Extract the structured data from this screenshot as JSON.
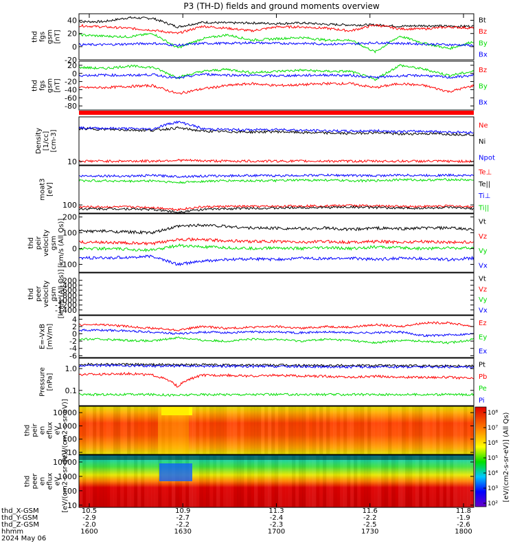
{
  "title": "P3 (TH-D) fields and ground moments overview",
  "colors": {
    "black": "#000000",
    "red": "#ff0000",
    "green": "#00dd00",
    "blue": "#0000ff"
  },
  "chart_data": {
    "type": "line",
    "x_ticks": [
      "1600",
      "1630",
      "1700",
      "1730",
      "1800"
    ],
    "x_axis_rows": [
      {
        "label": "thd_X-GSM",
        "values": [
          "10.5",
          "10.9",
          "11.3",
          "11.6",
          "11.8"
        ]
      },
      {
        "label": "thd_Y-GSM",
        "values": [
          "-2.9",
          "-2.7",
          "-2.4",
          "-2.2",
          "-1.9"
        ]
      },
      {
        "label": "thd_Z-GSM",
        "values": [
          "-2.0",
          "-2.2",
          "-2.3",
          "-2.5",
          "-2.6"
        ]
      },
      {
        "label": "hhmm",
        "values": [
          "1600",
          "1630",
          "1700",
          "1730",
          "1800"
        ]
      }
    ],
    "date_label": "2024 May 06",
    "panels": [
      {
        "ylabel": [
          "thd",
          "fgs",
          "gsm",
          "[nT]"
        ],
        "ylim": [
          -20,
          50
        ],
        "yticks": [
          "40",
          "20",
          "0",
          "-20"
        ],
        "legend": [
          {
            "name": "Bt",
            "color": "black"
          },
          {
            "name": "Bz",
            "color": "red"
          },
          {
            "name": "By",
            "color": "green"
          },
          {
            "name": "Bx",
            "color": "blue"
          }
        ],
        "series": [
          {
            "name": "Bt",
            "color": "black",
            "values": [
              38,
              38,
              44,
              43,
              30,
              37,
              36,
              36,
              35,
              36,
              34,
              33,
              33,
              31,
              32,
              31,
              31
            ]
          },
          {
            "name": "Bz",
            "color": "red",
            "values": [
              32,
              30,
              28,
              25,
              20,
              31,
              28,
              24,
              30,
              30,
              28,
              24,
              33,
              27,
              27,
              30,
              28
            ]
          },
          {
            "name": "By",
            "color": "green",
            "values": [
              18,
              16,
              15,
              20,
              -2,
              12,
              18,
              10,
              12,
              14,
              10,
              10,
              -8,
              16,
              5,
              -3,
              8
            ]
          },
          {
            "name": "Bx",
            "color": "blue",
            "values": [
              3,
              3,
              4,
              5,
              2,
              5,
              5,
              6,
              5,
              5,
              4,
              4,
              6,
              5,
              4,
              3,
              2
            ]
          }
        ]
      },
      {
        "ylabel": [
          "thd",
          "fgs",
          "gsm",
          "[nT]"
        ],
        "ylim": [
          -90,
          30
        ],
        "yticks": [
          "20",
          "0",
          "-20",
          "-40",
          "-60",
          "-80"
        ],
        "legend": [
          {
            "name": "Bz",
            "color": "red"
          },
          {
            "name": "By",
            "color": "green"
          },
          {
            "name": "Bx",
            "color": "blue"
          }
        ],
        "series": [
          {
            "name": "Bz",
            "color": "red",
            "values": [
              -35,
              -35,
              -32,
              -30,
              -50,
              -38,
              -30,
              -25,
              -30,
              -28,
              -25,
              -25,
              -35,
              -25,
              -30,
              -45,
              -30
            ]
          },
          {
            "name": "By",
            "color": "green",
            "values": [
              15,
              12,
              18,
              15,
              -10,
              5,
              10,
              2,
              5,
              8,
              5,
              5,
              -15,
              20,
              10,
              -5,
              5
            ]
          },
          {
            "name": "Bx",
            "color": "blue",
            "values": [
              -5,
              -4,
              -5,
              -3,
              -12,
              -2,
              -4,
              -5,
              -6,
              -5,
              -4,
              -5,
              -10,
              -6,
              -5,
              -10,
              -5
            ]
          }
        ]
      },
      {
        "ylabel": [
          "Density",
          "[1/cc]",
          "[cm-3]"
        ],
        "scale": "log",
        "ylim": [
          7,
          1000
        ],
        "yticks": [
          "10"
        ],
        "legend": [
          {
            "name": "Ne",
            "color": "red"
          },
          {
            "name": "Ni",
            "color": "black"
          },
          {
            "name": "Npot",
            "color": "blue"
          }
        ],
        "series": [
          {
            "name": "Ni",
            "color": "black",
            "values": [
              300,
              280,
              260,
              250,
              320,
              230,
              220,
              210,
              220,
              200,
              190,
              180,
              200,
              170,
              180,
              170,
              160
            ]
          },
          {
            "name": "Npot",
            "color": "blue",
            "values": [
              320,
              310,
              300,
              280,
              600,
              290,
              270,
              260,
              280,
              250,
              240,
              230,
              240,
              220,
              230,
              210,
              200
            ]
          },
          {
            "name": "Ne",
            "color": "red",
            "values": [
              10.5,
              10.5,
              10.5,
              10.5,
              11.5,
              10.8,
              10.5,
              10.5,
              10.5,
              10.5,
              10.5,
              10.4,
              10.4,
              10.4,
              10.4,
              10.3,
              10.3
            ]
          }
        ]
      },
      {
        "ylabel": [
          "moat3",
          "[eV]"
        ],
        "scale": "log",
        "ylim": [
          40,
          8000
        ],
        "yticks": [
          "100"
        ],
        "legend": [
          {
            "name": "Te⊥",
            "color": "red"
          },
          {
            "name": "Te||",
            "color": "black"
          },
          {
            "name": "Ti⊥",
            "color": "blue"
          },
          {
            "name": "Ti||",
            "color": "green"
          }
        ],
        "series": [
          {
            "name": "Ti⊥",
            "color": "blue",
            "values": [
              2500,
              2600,
              2500,
              2700,
              2400,
              2500,
              2600,
              2700,
              2600,
              2700,
              2800,
              2700,
              2600,
              2800,
              2700,
              2800,
              2700
            ]
          },
          {
            "name": "Ti||",
            "color": "green",
            "values": [
              1500,
              1500,
              1400,
              1500,
              1200,
              1400,
              1500,
              1500,
              1500,
              1600,
              1600,
              1500,
              1500,
              1700,
              1600,
              1700,
              1600
            ]
          },
          {
            "name": "Te⊥",
            "color": "red",
            "values": [
              80,
              80,
              80,
              75,
              60,
              80,
              85,
              85,
              85,
              90,
              90,
              95,
              90,
              85,
              85,
              90,
              80
            ]
          },
          {
            "name": "Te||",
            "color": "black",
            "values": [
              65,
              65,
              65,
              60,
              45,
              60,
              65,
              70,
              70,
              75,
              75,
              80,
              75,
              70,
              70,
              75,
              65
            ]
          }
        ]
      },
      {
        "ylabel": [
          "thd",
          "peir",
          "velocity",
          "gsm",
          "[km/s (All Qs)]"
        ],
        "ylim": [
          -150,
          220
        ],
        "yticks": [
          "200",
          "100",
          "0",
          "-100"
        ],
        "legend": [
          {
            "name": "Vt",
            "color": "black"
          },
          {
            "name": "Vz",
            "color": "red"
          },
          {
            "name": "Vy",
            "color": "green"
          },
          {
            "name": "Vx",
            "color": "blue"
          }
        ],
        "series": [
          {
            "name": "Vt",
            "color": "black",
            "values": [
              110,
              110,
              105,
              100,
              140,
              150,
              140,
              130,
              130,
              125,
              130,
              120,
              130,
              125,
              130,
              130,
              120
            ]
          },
          {
            "name": "Vz",
            "color": "red",
            "values": [
              40,
              40,
              35,
              30,
              60,
              55,
              50,
              45,
              45,
              40,
              45,
              40,
              45,
              40,
              45,
              40,
              40
            ]
          },
          {
            "name": "Vy",
            "color": "green",
            "values": [
              0,
              0,
              -5,
              -10,
              20,
              10,
              5,
              0,
              5,
              0,
              5,
              0,
              10,
              5,
              0,
              5,
              0
            ]
          },
          {
            "name": "Vx",
            "color": "blue",
            "values": [
              -60,
              -60,
              -55,
              -50,
              -100,
              -80,
              -70,
              -65,
              -70,
              -60,
              -65,
              -60,
              -70,
              -60,
              -65,
              -70,
              -60
            ]
          }
        ]
      },
      {
        "ylabel": [
          "thd",
          "peer",
          "velocity",
          "gsm",
          "[km/s (All Qs)]"
        ],
        "ylim": [
          -1600,
          100
        ],
        "yticks": [
          "-200",
          "-400",
          "-600",
          "-800",
          "-1000",
          "-1200",
          "-1400"
        ],
        "legend": [
          {
            "name": "Vt",
            "color": "black"
          },
          {
            "name": "Vz",
            "color": "red"
          },
          {
            "name": "Vy",
            "color": "green"
          },
          {
            "name": "Vx",
            "color": "blue"
          }
        ],
        "series": []
      },
      {
        "ylabel": [
          "E=-VxB",
          "[mV/m]"
        ],
        "ylim": [
          -6.5,
          5
        ],
        "yticks": [
          "4",
          "2",
          "0",
          "-2",
          "-4",
          "-6"
        ],
        "legend": [
          {
            "name": "Ez",
            "color": "red"
          },
          {
            "name": "Ey",
            "color": "green"
          },
          {
            "name": "Ex",
            "color": "blue"
          }
        ],
        "series": [
          {
            "name": "Ez",
            "color": "red",
            "values": [
              2.5,
              2.5,
              2.0,
              1.5,
              1.0,
              2.0,
              1.5,
              1.8,
              2.0,
              1.5,
              2.0,
              1.8,
              2.5,
              2.0,
              3.0,
              3.0,
              2.0
            ]
          },
          {
            "name": "Ey",
            "color": "green",
            "values": [
              -1.5,
              -1.5,
              -1.8,
              -2.0,
              -1.0,
              -1.8,
              -2.0,
              -1.5,
              -1.5,
              -2.0,
              -1.5,
              -1.8,
              -2.5,
              -1.8,
              -2.0,
              -2.5,
              -1.5
            ]
          },
          {
            "name": "Ex",
            "color": "blue",
            "values": [
              1.0,
              1.0,
              0.8,
              0.5,
              0.0,
              0.5,
              0.3,
              0.5,
              0.5,
              0.3,
              0.5,
              0.3,
              0.3,
              0.5,
              -0.5,
              -0.3,
              0.0
            ]
          }
        ]
      },
      {
        "ylabel": [
          "Pressure",
          "[nPa]"
        ],
        "scale": "log",
        "ylim": [
          0.02,
          3
        ],
        "yticks": [
          "1.0",
          "0.1"
        ],
        "legend": [
          {
            "name": "Pt",
            "color": "black"
          },
          {
            "name": "Pb",
            "color": "red"
          },
          {
            "name": "Pe",
            "color": "green"
          },
          {
            "name": "Pi",
            "color": "blue"
          }
        ],
        "series": [
          {
            "name": "Pt",
            "color": "black",
            "values": [
              1.6,
              1.6,
              1.55,
              1.55,
              1.5,
              1.5,
              1.45,
              1.45,
              1.45,
              1.4,
              1.4,
              1.4,
              1.4,
              1.35,
              1.35,
              1.35,
              1.35
            ]
          },
          {
            "name": "Pi",
            "color": "blue",
            "values": [
              1.4,
              1.4,
              1.35,
              1.35,
              1.3,
              1.3,
              1.3,
              1.25,
              1.25,
              1.25,
              1.2,
              1.2,
              1.2,
              1.2,
              1.2,
              1.2,
              1.2
            ]
          },
          {
            "name": "Pb",
            "color": "red",
            "values": [
              0.55,
              0.55,
              0.6,
              0.5,
              0.15,
              0.5,
              0.5,
              0.45,
              0.5,
              0.45,
              0.45,
              0.4,
              0.45,
              0.4,
              0.4,
              0.4,
              0.35
            ]
          },
          {
            "name": "Pe",
            "color": "green",
            "values": [
              0.065,
              0.065,
              0.065,
              0.065,
              0.06,
              0.065,
              0.065,
              0.065,
              0.065,
              0.065,
              0.065,
              0.065,
              0.065,
              0.065,
              0.065,
              0.065,
              0.065
            ]
          }
        ]
      },
      {
        "type": "heatmap",
        "ylabel": [
          "thd",
          "peir",
          "en",
          "eflux",
          "eV",
          "[eV/(cm2-s-sr-eV)]"
        ],
        "scale": "log",
        "ylim": [
          7,
          30000
        ],
        "yticks": [
          "10000",
          "1000",
          "100",
          "10"
        ]
      },
      {
        "type": "heatmap",
        "ylabel": [
          "thd",
          "peer",
          "en",
          "eflux",
          "eV",
          "[eV/(cm2-s-sr-eV)]"
        ],
        "scale": "log",
        "ylim": [
          7,
          30000
        ],
        "yticks": [
          "10000",
          "1000",
          "100",
          "10"
        ]
      }
    ],
    "colorbar": {
      "label": "[eV/(cm2-s-sr-eV)] (All Qs)",
      "ticks": [
        "10⁸",
        "10⁷",
        "10⁶",
        "10⁵",
        "10⁴",
        "10³",
        "10²"
      ]
    }
  }
}
